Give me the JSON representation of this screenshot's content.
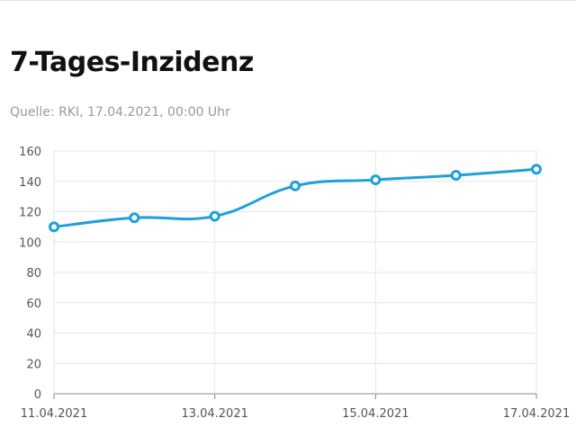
{
  "header": {
    "title": "7-Tages-Inzidenz",
    "source": "Quelle: RKI, 17.04.2021, 00:00 Uhr"
  },
  "colors": {
    "line": "#1ea0dc",
    "grid": "#e6e6e6",
    "axis": "#888888"
  },
  "chart_data": {
    "type": "line",
    "title": "7-Tages-Inzidenz",
    "x": [
      "11.04.2021",
      "12.04.2021",
      "13.04.2021",
      "14.04.2021",
      "15.04.2021",
      "16.04.2021",
      "17.04.2021"
    ],
    "x_tick_labels": [
      "11.04.2021",
      "13.04.2021",
      "15.04.2021",
      "17.04.2021"
    ],
    "series": [
      {
        "values": [
          110,
          116,
          117,
          137,
          141,
          144,
          148
        ]
      }
    ],
    "ylim": [
      0,
      160
    ],
    "y_ticks": [
      0,
      20,
      40,
      60,
      80,
      100,
      120,
      140,
      160
    ],
    "grid": true,
    "smooth": true
  }
}
